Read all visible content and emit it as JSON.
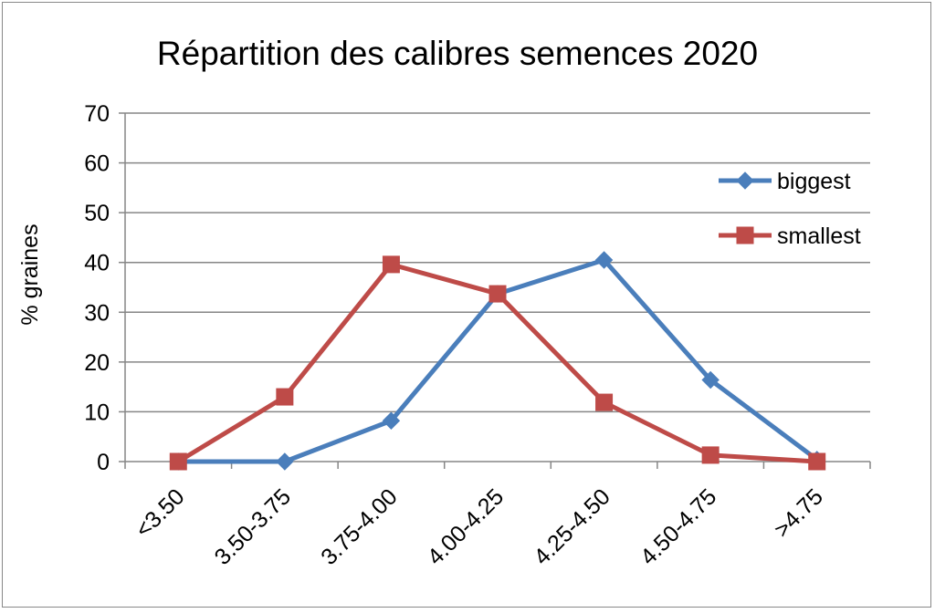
{
  "chart_data": {
    "type": "line",
    "title": "Répartition des calibres semences 2020",
    "xlabel": "",
    "ylabel": "% graines",
    "categories": [
      "<3.50",
      "3.50-3.75",
      "3.75-4.00",
      "4.00-4.25",
      "4.25-4.50",
      "4.50-4.75",
      ">4.75"
    ],
    "ylim": [
      0,
      70
    ],
    "yticks": [
      0,
      10,
      20,
      30,
      40,
      50,
      60,
      70
    ],
    "grid": true,
    "legend_position": "right",
    "series": [
      {
        "name": "biggest",
        "color": "#4a7ebb",
        "marker": "diamond",
        "values": [
          0,
          0,
          8.2,
          33.7,
          40.5,
          16.4,
          0.4
        ]
      },
      {
        "name": "smallest",
        "color": "#be4b48",
        "marker": "square",
        "values": [
          0,
          13,
          39.6,
          33.7,
          11.9,
          1.3,
          0
        ]
      }
    ]
  }
}
